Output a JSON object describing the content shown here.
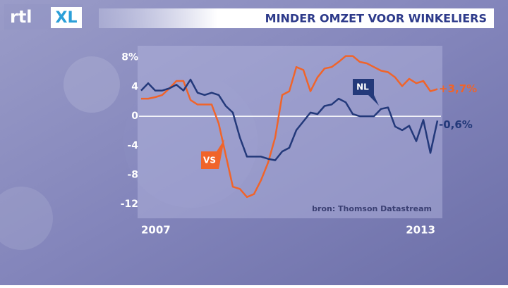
{
  "logo": {
    "left": "rtl",
    "right": "XL"
  },
  "chart_data": {
    "type": "line",
    "title": "MINDER OMZET VOOR WINKELIERS",
    "source": "bron: Thomson Datastream",
    "xlabels": [
      "2007",
      "2013"
    ],
    "ylim": [
      -13.9,
      9.6
    ],
    "yticks": [
      {
        "value": 8,
        "label": "8%"
      },
      4,
      0,
      -4,
      -8,
      -12
    ],
    "zero_line": true,
    "series": [
      {
        "name": "VS",
        "color": "#f0642a",
        "end_label": "+3,7%",
        "values": [
          2.4,
          2.4,
          2.6,
          2.9,
          3.8,
          4.8,
          4.8,
          2.2,
          1.6,
          1.6,
          1.6,
          -1.0,
          -5.3,
          -9.6,
          -9.9,
          -11.0,
          -10.6,
          -8.7,
          -6.3,
          -2.9,
          2.9,
          3.4,
          6.7,
          6.3,
          3.4,
          5.3,
          6.5,
          6.7,
          7.4,
          8.2,
          8.2,
          7.4,
          7.2,
          6.7,
          6.2,
          6.0,
          5.3,
          4.1,
          5.1,
          4.5,
          4.8,
          3.4,
          3.7
        ]
      },
      {
        "name": "NL",
        "color": "#23397a",
        "end_label": "-0,6%",
        "values": [
          3.5,
          4.5,
          3.5,
          3.5,
          3.8,
          4.3,
          3.5,
          5.0,
          3.2,
          2.9,
          3.2,
          2.9,
          1.4,
          0.5,
          -2.9,
          -5.5,
          -5.5,
          -5.5,
          -5.8,
          -6.0,
          -4.8,
          -4.3,
          -1.9,
          -0.7,
          0.5,
          0.3,
          1.4,
          1.6,
          2.4,
          1.9,
          0.3,
          0,
          0,
          0,
          1.0,
          1.2,
          -1.4,
          -1.9,
          -1.3,
          -3.4,
          -0.5,
          -5.0,
          -0.6
        ]
      }
    ]
  }
}
